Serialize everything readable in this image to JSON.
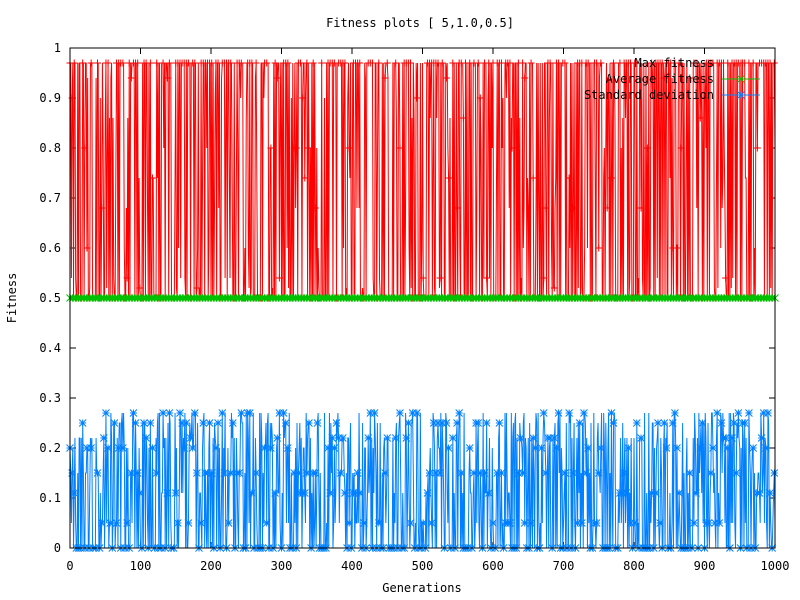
{
  "chart_data": {
    "type": "line",
    "title": "Fitness plots [ 5,1.0,0.5]",
    "xlabel": "Generations",
    "ylabel": "Fitness",
    "xlim": [
      0,
      1000
    ],
    "ylim": [
      0,
      1
    ],
    "x_ticks": [
      "0",
      "100",
      "200",
      "300",
      "400",
      "500",
      "600",
      "700",
      "800",
      "900",
      "1000"
    ],
    "y_ticks": [
      "0",
      "0.1",
      "0.2",
      "0.3",
      "0.4",
      "0.5",
      "0.6",
      "0.7",
      "0.8",
      "0.9",
      "1"
    ],
    "grid": false,
    "legend_position": "top-right",
    "generations": 1000,
    "series": [
      {
        "name": "Max fitness",
        "color": "#ff0000",
        "marker": "plus",
        "typical_values": [
          0.5,
          0.52,
          0.54,
          0.6,
          0.68,
          0.74,
          0.8,
          0.86,
          0.9,
          0.94,
          0.97
        ],
        "range": [
          0.5,
          0.97
        ]
      },
      {
        "name": "Average fitness",
        "color": "#00c000",
        "marker": "cross",
        "constant_value": 0.5
      },
      {
        "name": "Standard deviation",
        "color": "#0080ff",
        "marker": "star",
        "typical_values": [
          0,
          0.05,
          0.11,
          0.15,
          0.2,
          0.22,
          0.25,
          0.27
        ],
        "range": [
          0,
          0.28
        ]
      }
    ]
  }
}
